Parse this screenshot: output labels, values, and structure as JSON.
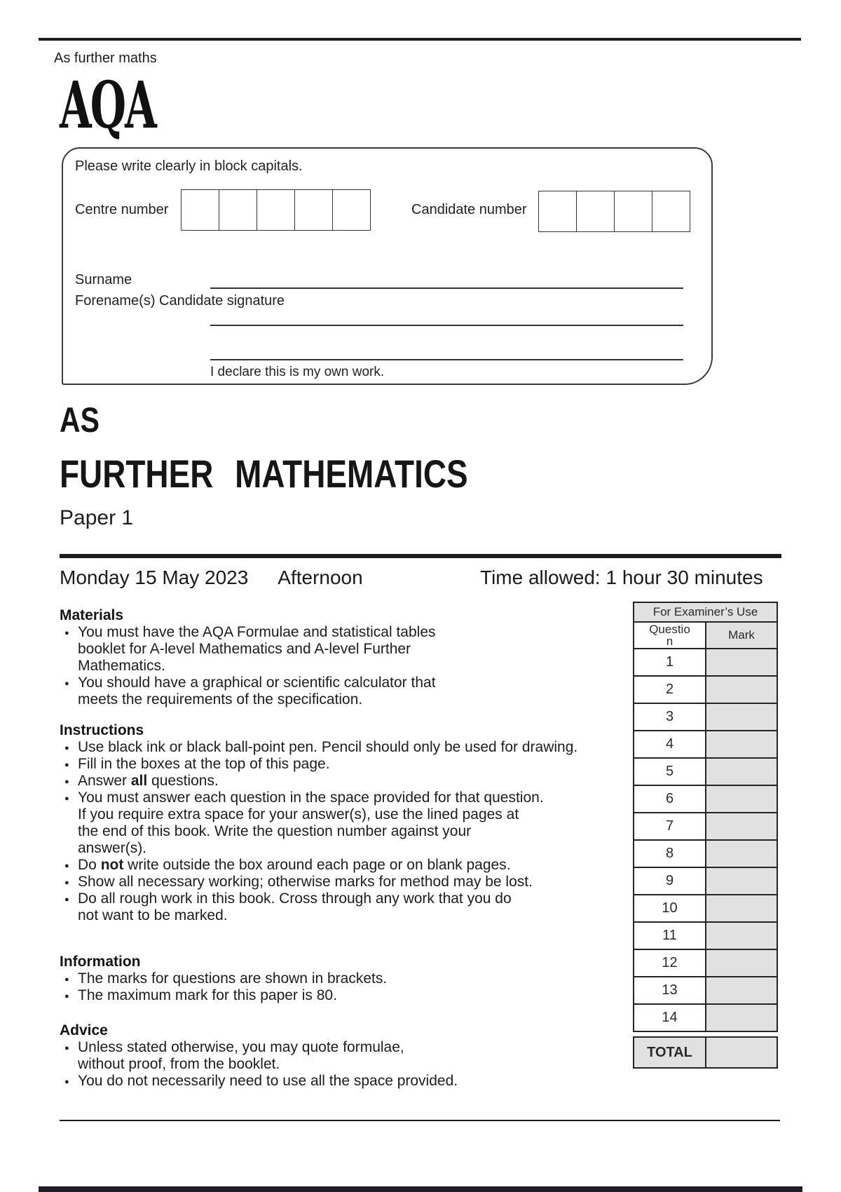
{
  "header": {
    "course_label": "As further maths",
    "logo_text": "AQA"
  },
  "candidate_box": {
    "instruction": "Please write clearly in block capitals.",
    "centre_number_label": "Centre number",
    "centre_number_cells": 5,
    "candidate_number_label": "Candidate number",
    "candidate_number_cells": 4,
    "surname_label": "Surname",
    "forename_label": "Forename(s) Candidate signature",
    "declaration": "I declare this is my own work."
  },
  "title": {
    "level": "AS",
    "subject": "FURTHER MATHEMATICS",
    "paper": "Paper 1"
  },
  "session": {
    "date": "Monday 15 May 2023",
    "session": "Afternoon",
    "time_allowed": "Time allowed: 1 hour 30 minutes"
  },
  "sections": [
    {
      "heading": "Materials",
      "items": [
        {
          "lines": [
            "You must have the AQA Formulae and statistical tables",
            "booklet for A-level Mathematics and A-level Further",
            "Mathematics."
          ]
        },
        {
          "lines": [
            "You should have a graphical or scientific calculator that",
            "meets the requirements of the specification."
          ]
        }
      ]
    },
    {
      "heading": "Instructions",
      "items": [
        {
          "lines": [
            "Use black ink or black ball-point pen. Pencil should only be used for drawing."
          ]
        },
        {
          "lines": [
            "Fill in the boxes at the top of this page."
          ]
        },
        {
          "lines": [
            "Answer **all** questions."
          ]
        },
        {
          "lines": [
            "You must answer each question in the space provided for that question.",
            "If you require extra space for your answer(s), use the lined pages at",
            "the end of this book. Write the question number against your",
            "answer(s)."
          ]
        },
        {
          "lines": [
            "Do **not** write outside the box around each page or on blank pages."
          ]
        },
        {
          "lines": [
            "Show all necessary working; otherwise marks for method may be lost."
          ]
        },
        {
          "lines": [
            "Do all rough work in this book. Cross through any work that you do",
            "not want to be marked."
          ]
        }
      ]
    },
    {
      "heading": "Information",
      "items": [
        {
          "lines": [
            "The marks for questions are shown in brackets."
          ]
        },
        {
          "lines": [
            "The maximum mark for this paper is 80."
          ]
        }
      ]
    },
    {
      "heading": "Advice",
      "items": [
        {
          "lines": [
            "Unless stated otherwise, you may quote formulae,",
            "without proof, from the booklet."
          ]
        },
        {
          "lines": [
            "You do not necessarily need to use all the space provided."
          ]
        }
      ]
    }
  ],
  "examiner_table": {
    "title": "For Examiner’s Use",
    "question_header_lines": [
      "Questio",
      "n"
    ],
    "mark_header": "Mark",
    "question_rows": [
      "1",
      "2",
      "3",
      "4",
      "5",
      "6",
      "7",
      "8",
      "9",
      "10",
      "11",
      "12",
      "13",
      "14"
    ],
    "total_label": "TOTAL"
  },
  "colors": {
    "rule": "#1b1b1b",
    "table_fill": "#e1e1e1",
    "footer_bar": "#1e1e28"
  }
}
